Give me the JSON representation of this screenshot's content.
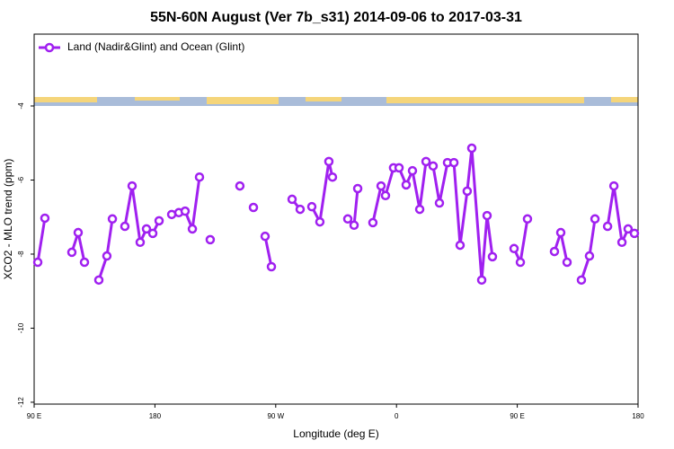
{
  "chart_data": {
    "type": "line",
    "title": "55N-60N August (Ver 7b_s31)   2014-09-06 to 2017-03-31",
    "x_label": "Longitude (deg E)",
    "y_label": "XCO2 - MLO trend (ppm)",
    "xlim": [
      90,
      540
    ],
    "ylim": [
      -12.05,
      -2.06
    ],
    "xticks": [
      {
        "value": 90,
        "label": "90 E"
      },
      180,
      {
        "value": 270,
        "label": "90 W"
      },
      {
        "value": 360,
        "label": "0"
      },
      {
        "value": 450,
        "label": "90 E"
      },
      {
        "value": 540,
        "label": "180"
      }
    ],
    "yticks": [
      -4,
      -6,
      -8,
      -10,
      -12
    ],
    "legend": "upper left",
    "series": [
      {
        "name": "Land (Nadir&Glint) and Ocean (Glint)",
        "color": "#a020f0",
        "x": [
          92.7,
          98.0,
          null,
          118.1,
          122.8,
          127.5,
          null,
          138.2,
          144.2,
          148.3,
          null,
          157.6,
          163.0,
          169.0,
          173.7,
          178.4,
          183.1,
          null,
          192.5,
          197.8,
          202.5,
          207.9,
          213.2,
          null,
          221.2,
          null,
          243.3,
          null,
          253.4,
          null,
          262.1,
          266.8,
          null,
          282.2,
          288.2,
          null,
          296.9,
          302.9,
          309.6,
          312.3,
          null,
          323.7,
          328.4,
          331.1,
          null,
          342.4,
          348.5,
          351.8,
          357.8,
          361.9,
          367.2,
          371.9,
          377.3,
          382.0,
          387.3,
          392.0,
          398.0,
          402.8,
          407.4,
          412.7,
          416.1,
          423.5,
          427.5,
          431.5,
          null,
          447.6,
          452.3,
          457.6,
          null,
          477.7,
          482.4,
          487.1,
          null,
          497.8,
          503.8,
          507.9,
          null,
          517.3,
          522.0,
          528.0,
          532.6,
          537.3
        ],
        "values": [
          -8.22,
          -7.03,
          null,
          -7.95,
          -7.42,
          -8.22,
          null,
          -8.7,
          -8.05,
          -7.05,
          null,
          -7.25,
          -6.16,
          -7.68,
          -7.32,
          -7.44,
          -7.1,
          null,
          -6.93,
          -6.88,
          -6.84,
          -7.32,
          -5.92,
          null,
          -7.61,
          null,
          -6.16,
          null,
          -6.74,
          null,
          -7.52,
          -8.34,
          null,
          -6.52,
          -6.79,
          null,
          -6.72,
          -7.13,
          -5.5,
          -5.92,
          null,
          -7.05,
          -7.22,
          -6.23,
          null,
          -7.15,
          -6.16,
          -6.42,
          -5.67,
          -5.67,
          -6.13,
          -5.75,
          -6.79,
          -5.5,
          -5.62,
          -6.62,
          -5.53,
          -5.53,
          -7.76,
          -6.3,
          -5.14,
          -8.7,
          -6.96,
          -8.07,
          null,
          -7.85,
          -8.22,
          -7.05,
          null,
          -7.93,
          -7.42,
          -8.22,
          null,
          -8.7,
          -8.05,
          -7.05,
          null,
          -7.25,
          -6.16,
          -7.68,
          -7.32,
          -7.44
        ]
      }
    ]
  }
}
